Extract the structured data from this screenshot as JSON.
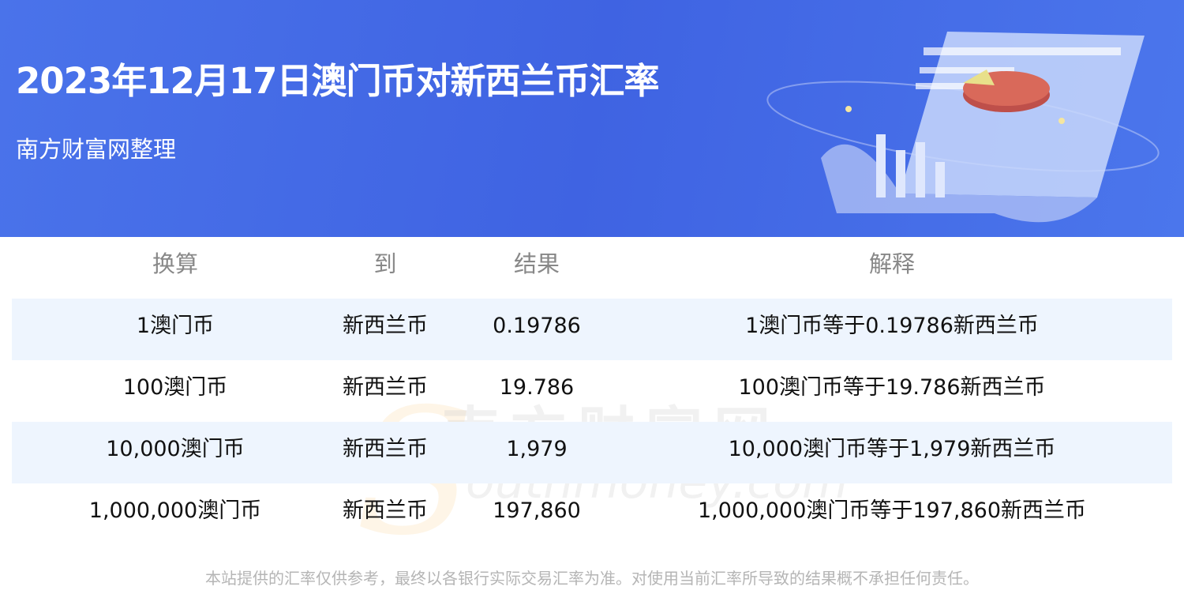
{
  "header": {
    "title": "2023年12月17日澳门币对新西兰币汇率",
    "subtitle": "南方财富网整理"
  },
  "table": {
    "columns": [
      "换算",
      "到",
      "结果",
      "解释"
    ],
    "rows": [
      {
        "amount": "1澳门币",
        "to": "新西兰币",
        "result": "0.19786",
        "explanation": "1澳门币等于0.19786新西兰币"
      },
      {
        "amount": "100澳门币",
        "to": "新西兰币",
        "result": "19.786",
        "explanation": "100澳门币等于19.786新西兰币"
      },
      {
        "amount": "10,000澳门币",
        "to": "新西兰币",
        "result": "1,979",
        "explanation": "10,000澳门币等于1,979新西兰币"
      },
      {
        "amount": "1,000,000澳门币",
        "to": "新西兰币",
        "result": "197,860",
        "explanation": "1,000,000澳门币等于197,860新西兰币"
      }
    ]
  },
  "watermark": {
    "cn": "南方财富网",
    "en": "outhmoney.com",
    "logo_letter": "S"
  },
  "footer": {
    "disclaimer": "本站提供的汇率仅供参考，最终以各银行实际交易汇率为准。对使用当前汇率所导致的结果概不承担任何责任。"
  },
  "colors": {
    "banner": "#4169e1",
    "row_alt": "#eef5fe"
  }
}
